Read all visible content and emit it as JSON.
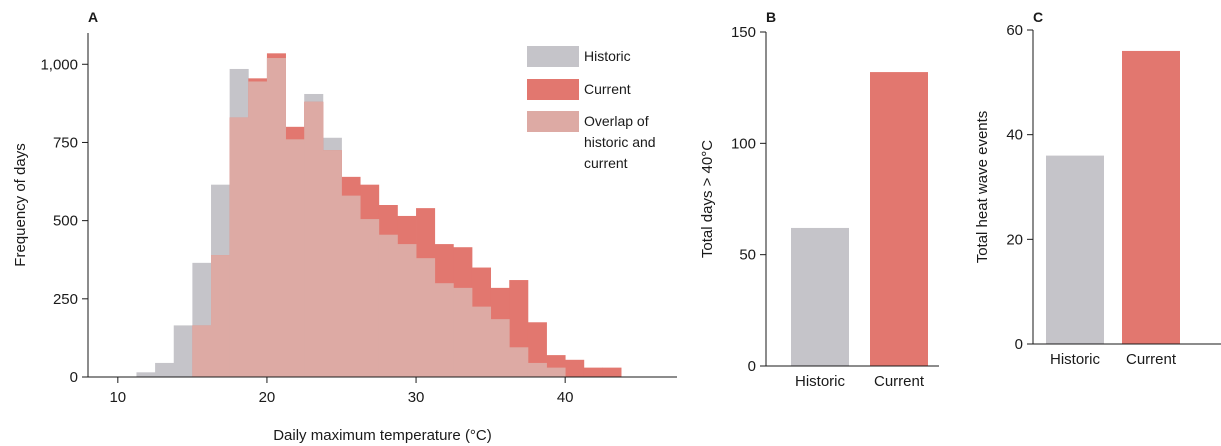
{
  "colors": {
    "historic": "#c5c4c9",
    "current": "#e2776f",
    "overlap": "#ddaaa4",
    "axis": "#1a1a1a"
  },
  "chart_data": [
    {
      "panel": "A",
      "type": "bar",
      "subtype": "histogram-overlay",
      "xlabel": "Daily maximum temperature (°C)",
      "ylabel": "Frequency of days",
      "xlim": [
        8,
        47.5
      ],
      "ylim": [
        0,
        1100
      ],
      "xticks": [
        10,
        20,
        30,
        40
      ],
      "yticks": [
        0,
        250,
        500,
        750,
        1000
      ],
      "ytick_labels": [
        "0",
        "250",
        "500",
        "750",
        "1,000"
      ],
      "bin_width": 1.25,
      "bin_edges": [
        10.0,
        11.25,
        12.5,
        13.75,
        15.0,
        16.25,
        17.5,
        18.75,
        20.0,
        21.25,
        22.5,
        23.75,
        25.0,
        26.25,
        27.5,
        28.75,
        30.0,
        31.25,
        32.5,
        33.75,
        35.0,
        36.25,
        37.5,
        38.75,
        40.0,
        41.25,
        42.5,
        43.75
      ],
      "series": [
        {
          "name": "Historic",
          "values": [
            0,
            15,
            45,
            165,
            365,
            615,
            985,
            945,
            1020,
            760,
            905,
            765,
            580,
            505,
            455,
            425,
            380,
            300,
            285,
            225,
            185,
            95,
            45,
            30,
            0,
            0,
            0
          ]
        },
        {
          "name": "Current",
          "values": [
            0,
            0,
            0,
            0,
            165,
            390,
            830,
            955,
            1035,
            800,
            880,
            725,
            640,
            615,
            550,
            515,
            540,
            425,
            415,
            350,
            285,
            310,
            175,
            70,
            55,
            30,
            30
          ]
        },
        {
          "name": "Overlap of historic and current",
          "values": [
            0,
            0,
            0,
            0,
            165,
            390,
            830,
            945,
            1020,
            760,
            880,
            725,
            580,
            505,
            455,
            425,
            380,
            300,
            285,
            225,
            185,
            95,
            45,
            30,
            0,
            0,
            0
          ]
        }
      ],
      "legend": {
        "placement": "top-right",
        "entries": [
          "Historic",
          "Current",
          "Overlap of historic and current"
        ]
      }
    },
    {
      "panel": "B",
      "type": "bar",
      "ylabel": "Total days > 40°C",
      "categories": [
        "Historic",
        "Current"
      ],
      "values": [
        62,
        132
      ],
      "ylim": [
        0,
        150
      ],
      "yticks": [
        0,
        50,
        100,
        150
      ]
    },
    {
      "panel": "C",
      "type": "bar",
      "ylabel": "Total heat wave events",
      "categories": [
        "Historic",
        "Current"
      ],
      "values": [
        36,
        56
      ],
      "ylim": [
        0,
        60
      ],
      "yticks": [
        0,
        20,
        40,
        60
      ]
    }
  ]
}
